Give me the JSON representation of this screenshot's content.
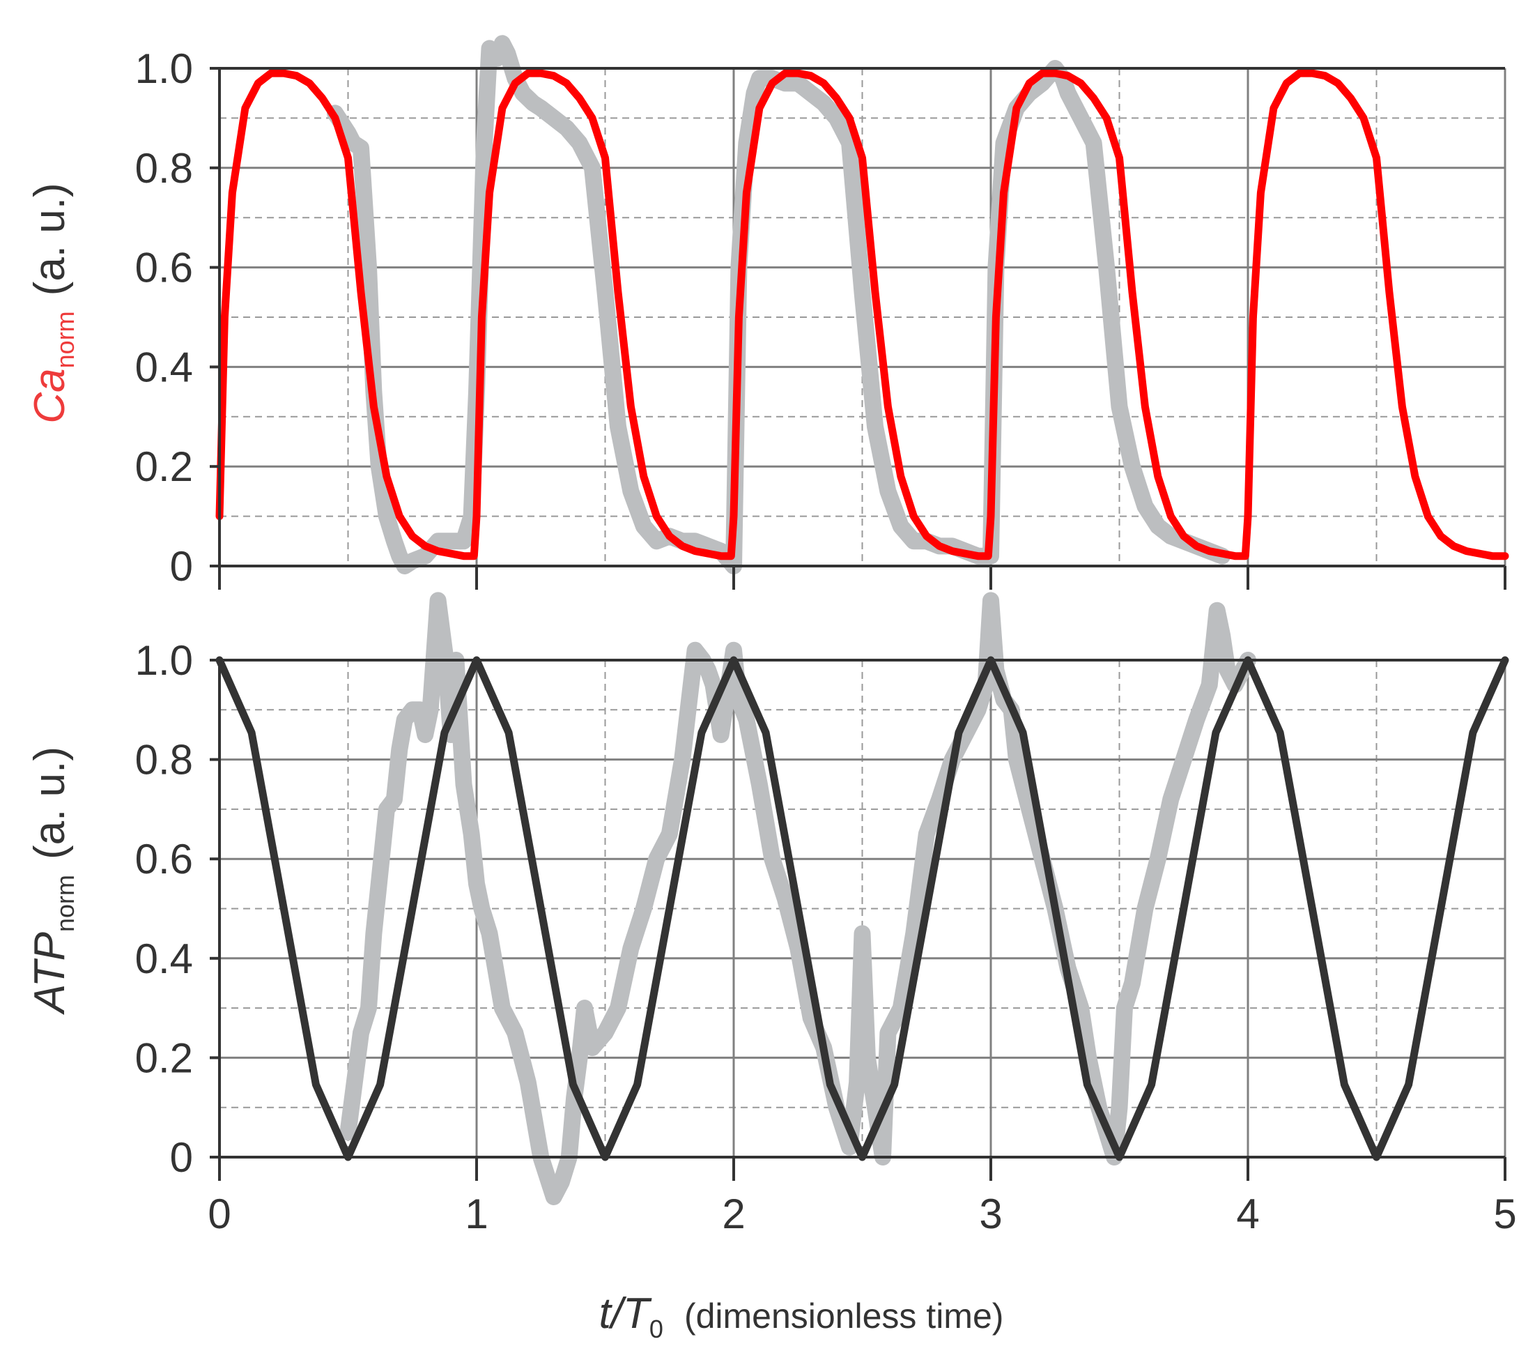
{
  "colors": {
    "ca_fit": "#ff0000",
    "atp_fit": "#333333",
    "measured": "#bcbec0",
    "ca_label": "#ee3b3b",
    "axis": "#333333",
    "grid_major": "#808080",
    "grid_minor": "#999999"
  },
  "chart_data": [
    {
      "type": "line",
      "ylabel_main": "Ca",
      "ylabel_sub": "norm",
      "ylabel_unit": "(a. u.)",
      "xlim": [
        0,
        5
      ],
      "ylim": [
        0,
        1.0
      ],
      "yticks": [
        "0",
        "0.2",
        "0.4",
        "0.6",
        "0.8",
        "1.0"
      ],
      "ytick_values": [
        0,
        0.2,
        0.4,
        0.6,
        0.8,
        1.0
      ],
      "xtick_values": [
        0,
        1,
        2,
        3,
        4,
        5
      ],
      "grid": "major solid + minor dashed",
      "series": [
        {
          "kind": "fit",
          "x": [
            0,
            0.02,
            0.05,
            0.1,
            0.15,
            0.2,
            0.25,
            0.3,
            0.35,
            0.4,
            0.45,
            0.5,
            0.55,
            0.6,
            0.65,
            0.7,
            0.75,
            0.8,
            0.85,
            0.9,
            0.95,
            0.99,
            1.0,
            1.02,
            1.05,
            1.1,
            1.15,
            1.2,
            1.25,
            1.3,
            1.35,
            1.4,
            1.45,
            1.5,
            1.55,
            1.6,
            1.65,
            1.7,
            1.75,
            1.8,
            1.85,
            1.9,
            1.95,
            1.99,
            2.0,
            2.02,
            2.05,
            2.1,
            2.15,
            2.2,
            2.25,
            2.3,
            2.35,
            2.4,
            2.45,
            2.5,
            2.55,
            2.6,
            2.65,
            2.7,
            2.75,
            2.8,
            2.85,
            2.9,
            2.95,
            2.99,
            3.0,
            3.02,
            3.05,
            3.1,
            3.15,
            3.2,
            3.25,
            3.3,
            3.35,
            3.4,
            3.45,
            3.5,
            3.55,
            3.6,
            3.65,
            3.7,
            3.75,
            3.8,
            3.85,
            3.9,
            3.95,
            3.99,
            4.0,
            4.02,
            4.05,
            4.1,
            4.15,
            4.2,
            4.25,
            4.3,
            4.35,
            4.4,
            4.45,
            4.5,
            4.55,
            4.6,
            4.65,
            4.7,
            4.75,
            4.8,
            4.85,
            4.9,
            4.95,
            5.0
          ],
          "y": [
            0.1,
            0.5,
            0.75,
            0.92,
            0.97,
            0.99,
            0.99,
            0.985,
            0.97,
            0.94,
            0.9,
            0.82,
            0.55,
            0.32,
            0.18,
            0.1,
            0.06,
            0.04,
            0.03,
            0.025,
            0.02,
            0.02,
            0.1,
            0.5,
            0.75,
            0.92,
            0.97,
            0.99,
            0.99,
            0.985,
            0.97,
            0.94,
            0.9,
            0.82,
            0.55,
            0.32,
            0.18,
            0.1,
            0.06,
            0.04,
            0.03,
            0.025,
            0.02,
            0.02,
            0.1,
            0.5,
            0.75,
            0.92,
            0.97,
            0.99,
            0.99,
            0.985,
            0.97,
            0.94,
            0.9,
            0.82,
            0.55,
            0.32,
            0.18,
            0.1,
            0.06,
            0.04,
            0.03,
            0.025,
            0.02,
            0.02,
            0.1,
            0.5,
            0.75,
            0.92,
            0.97,
            0.99,
            0.99,
            0.985,
            0.97,
            0.94,
            0.9,
            0.82,
            0.55,
            0.32,
            0.18,
            0.1,
            0.06,
            0.04,
            0.03,
            0.025,
            0.02,
            0.02,
            0.1,
            0.5,
            0.75,
            0.92,
            0.97,
            0.99,
            0.99,
            0.985,
            0.97,
            0.94,
            0.9,
            0.82,
            0.55,
            0.32,
            0.18,
            0.1,
            0.06,
            0.04,
            0.03,
            0.025,
            0.02,
            0.02
          ]
        },
        {
          "kind": "measured",
          "x": [
            0.45,
            0.5,
            0.52,
            0.55,
            0.58,
            0.6,
            0.62,
            0.65,
            0.68,
            0.7,
            0.72,
            0.75,
            0.8,
            0.85,
            0.9,
            0.95,
            0.98,
            1.0,
            1.03,
            1.05,
            1.08,
            1.1,
            1.12,
            1.15,
            1.18,
            1.2,
            1.22,
            1.25,
            1.3,
            1.35,
            1.4,
            1.45,
            1.5,
            1.55,
            1.6,
            1.65,
            1.7,
            1.75,
            1.8,
            1.85,
            1.9,
            1.95,
            2.0,
            2.02,
            2.05,
            2.08,
            2.1,
            2.15,
            2.2,
            2.25,
            2.3,
            2.35,
            2.4,
            2.45,
            2.5,
            2.55,
            2.6,
            2.65,
            2.7,
            2.75,
            2.8,
            2.85,
            2.9,
            2.95,
            3.0,
            3.02,
            3.05,
            3.1,
            3.15,
            3.2,
            3.25,
            3.28,
            3.3,
            3.35,
            3.4,
            3.45,
            3.5,
            3.55,
            3.6,
            3.65,
            3.7,
            3.75,
            3.8,
            3.85,
            3.9
          ],
          "y": [
            0.91,
            0.87,
            0.85,
            0.84,
            0.6,
            0.35,
            0.2,
            0.1,
            0.05,
            0.02,
            0.0,
            0.01,
            0.02,
            0.05,
            0.05,
            0.05,
            0.1,
            0.35,
            0.85,
            1.04,
            1.02,
            1.05,
            1.03,
            0.98,
            0.95,
            0.94,
            0.93,
            0.92,
            0.9,
            0.88,
            0.85,
            0.8,
            0.55,
            0.28,
            0.15,
            0.08,
            0.05,
            0.06,
            0.05,
            0.05,
            0.04,
            0.03,
            0.0,
            0.6,
            0.85,
            0.95,
            0.98,
            0.98,
            0.97,
            0.97,
            0.95,
            0.93,
            0.9,
            0.85,
            0.55,
            0.28,
            0.15,
            0.08,
            0.05,
            0.05,
            0.04,
            0.04,
            0.03,
            0.02,
            0.02,
            0.6,
            0.85,
            0.92,
            0.95,
            0.97,
            1.0,
            0.98,
            0.95,
            0.9,
            0.85,
            0.6,
            0.32,
            0.2,
            0.12,
            0.08,
            0.06,
            0.05,
            0.04,
            0.03,
            0.02
          ]
        }
      ]
    },
    {
      "type": "line",
      "ylabel_main": "ATP",
      "ylabel_sub": "norm",
      "ylabel_unit": "(a. u.)",
      "xlabel_main": "t/T",
      "xlabel_sub": "0",
      "xlabel_note": "(dimensionless time)",
      "xlim": [
        0,
        5
      ],
      "ylim": [
        0,
        1.0
      ],
      "yticks": [
        "0",
        "0.2",
        "0.4",
        "0.6",
        "0.8",
        "1.0"
      ],
      "ytick_values": [
        0,
        0.2,
        0.4,
        0.6,
        0.8,
        1.0
      ],
      "xticks": [
        "0",
        "1",
        "2",
        "3",
        "4",
        "5"
      ],
      "xtick_values": [
        0,
        1,
        2,
        3,
        4,
        5
      ],
      "grid": "major solid + minor dashed",
      "series": [
        {
          "kind": "fit",
          "x": [
            0,
            0.125,
            0.25,
            0.375,
            0.5,
            0.625,
            0.75,
            0.875,
            1.0,
            1.125,
            1.25,
            1.375,
            1.5,
            1.625,
            1.75,
            1.875,
            2.0,
            2.125,
            2.25,
            2.375,
            2.5,
            2.625,
            2.75,
            2.875,
            3.0,
            3.125,
            3.25,
            3.375,
            3.5,
            3.625,
            3.75,
            3.875,
            4.0,
            4.125,
            4.25,
            4.375,
            4.5,
            4.625,
            4.75,
            4.875,
            5.0
          ],
          "y": [
            1.0,
            0.854,
            0.5,
            0.146,
            0.0,
            0.146,
            0.5,
            0.854,
            1.0,
            0.854,
            0.5,
            0.146,
            0.0,
            0.146,
            0.5,
            0.854,
            1.0,
            0.854,
            0.5,
            0.146,
            0.0,
            0.146,
            0.5,
            0.854,
            1.0,
            0.854,
            0.5,
            0.146,
            0.0,
            0.146,
            0.5,
            0.854,
            1.0,
            0.854,
            0.5,
            0.146,
            0.0,
            0.146,
            0.5,
            0.854,
            1.0
          ]
        },
        {
          "kind": "measured",
          "x": [
            0.5,
            0.55,
            0.58,
            0.6,
            0.65,
            0.68,
            0.7,
            0.72,
            0.75,
            0.78,
            0.8,
            0.82,
            0.85,
            0.88,
            0.9,
            0.92,
            0.95,
            0.98,
            1.0,
            1.02,
            1.05,
            1.1,
            1.15,
            1.2,
            1.25,
            1.3,
            1.33,
            1.36,
            1.38,
            1.4,
            1.42,
            1.45,
            1.5,
            1.55,
            1.6,
            1.65,
            1.7,
            1.75,
            1.8,
            1.85,
            1.88,
            1.9,
            1.92,
            1.95,
            1.98,
            2.0,
            2.02,
            2.05,
            2.1,
            2.15,
            2.2,
            2.25,
            2.3,
            2.35,
            2.4,
            2.45,
            2.48,
            2.5,
            2.52,
            2.55,
            2.58,
            2.6,
            2.65,
            2.7,
            2.75,
            2.8,
            2.85,
            2.9,
            2.95,
            2.98,
            3.0,
            3.02,
            3.05,
            3.08,
            3.1,
            3.15,
            3.2,
            3.25,
            3.3,
            3.35,
            3.38,
            3.4,
            3.42,
            3.45,
            3.48,
            3.5,
            3.52,
            3.55,
            3.6,
            3.65,
            3.7,
            3.75,
            3.8,
            3.85,
            3.88,
            3.9,
            3.92,
            3.95,
            3.98,
            4.0
          ],
          "y": [
            0.05,
            0.25,
            0.3,
            0.45,
            0.7,
            0.72,
            0.82,
            0.88,
            0.9,
            0.9,
            0.85,
            0.9,
            1.12,
            1.0,
            0.85,
            1.0,
            0.75,
            0.65,
            0.55,
            0.5,
            0.45,
            0.3,
            0.25,
            0.15,
            0.0,
            -0.08,
            -0.05,
            0.0,
            0.12,
            0.2,
            0.3,
            0.22,
            0.25,
            0.3,
            0.42,
            0.5,
            0.6,
            0.65,
            0.8,
            1.02,
            1.0,
            0.98,
            0.95,
            0.85,
            0.95,
            1.02,
            0.92,
            0.88,
            0.75,
            0.6,
            0.52,
            0.42,
            0.28,
            0.22,
            0.1,
            0.02,
            0.15,
            0.45,
            0.2,
            0.1,
            0.0,
            0.25,
            0.3,
            0.45,
            0.65,
            0.72,
            0.8,
            0.85,
            0.9,
            0.95,
            1.12,
            0.98,
            0.92,
            0.9,
            0.8,
            0.7,
            0.6,
            0.5,
            0.38,
            0.3,
            0.2,
            0.15,
            0.1,
            0.05,
            0.0,
            0.1,
            0.3,
            0.35,
            0.5,
            0.6,
            0.72,
            0.8,
            0.88,
            0.95,
            1.1,
            1.05,
            0.98,
            0.95,
            0.98,
            1.0
          ]
        }
      ]
    }
  ]
}
